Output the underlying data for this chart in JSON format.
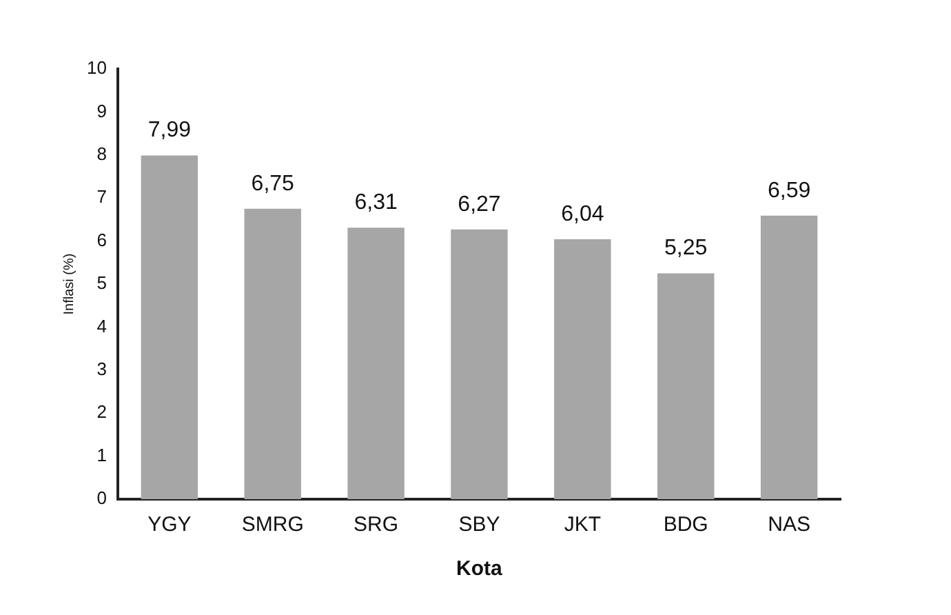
{
  "chart_data": {
    "type": "bar",
    "xlabel": "Kota",
    "ylabel": "Inflasi (%)",
    "categories": [
      "YGY",
      "SMRG",
      "SRG",
      "SBY",
      "JKT",
      "BDG",
      "NAS"
    ],
    "values": [
      7.99,
      6.75,
      6.31,
      6.27,
      6.04,
      5.25,
      6.59
    ],
    "value_labels": [
      "7,99",
      "6,75",
      "6,31",
      "6,27",
      "6,04",
      "5,25",
      "6,59"
    ],
    "color": "#a6a6a6",
    "ylim": [
      0,
      10
    ],
    "yticks": [
      0,
      1,
      2,
      3,
      4,
      5,
      6,
      7,
      8,
      9,
      10
    ],
    "grid": false,
    "legend": false
  }
}
